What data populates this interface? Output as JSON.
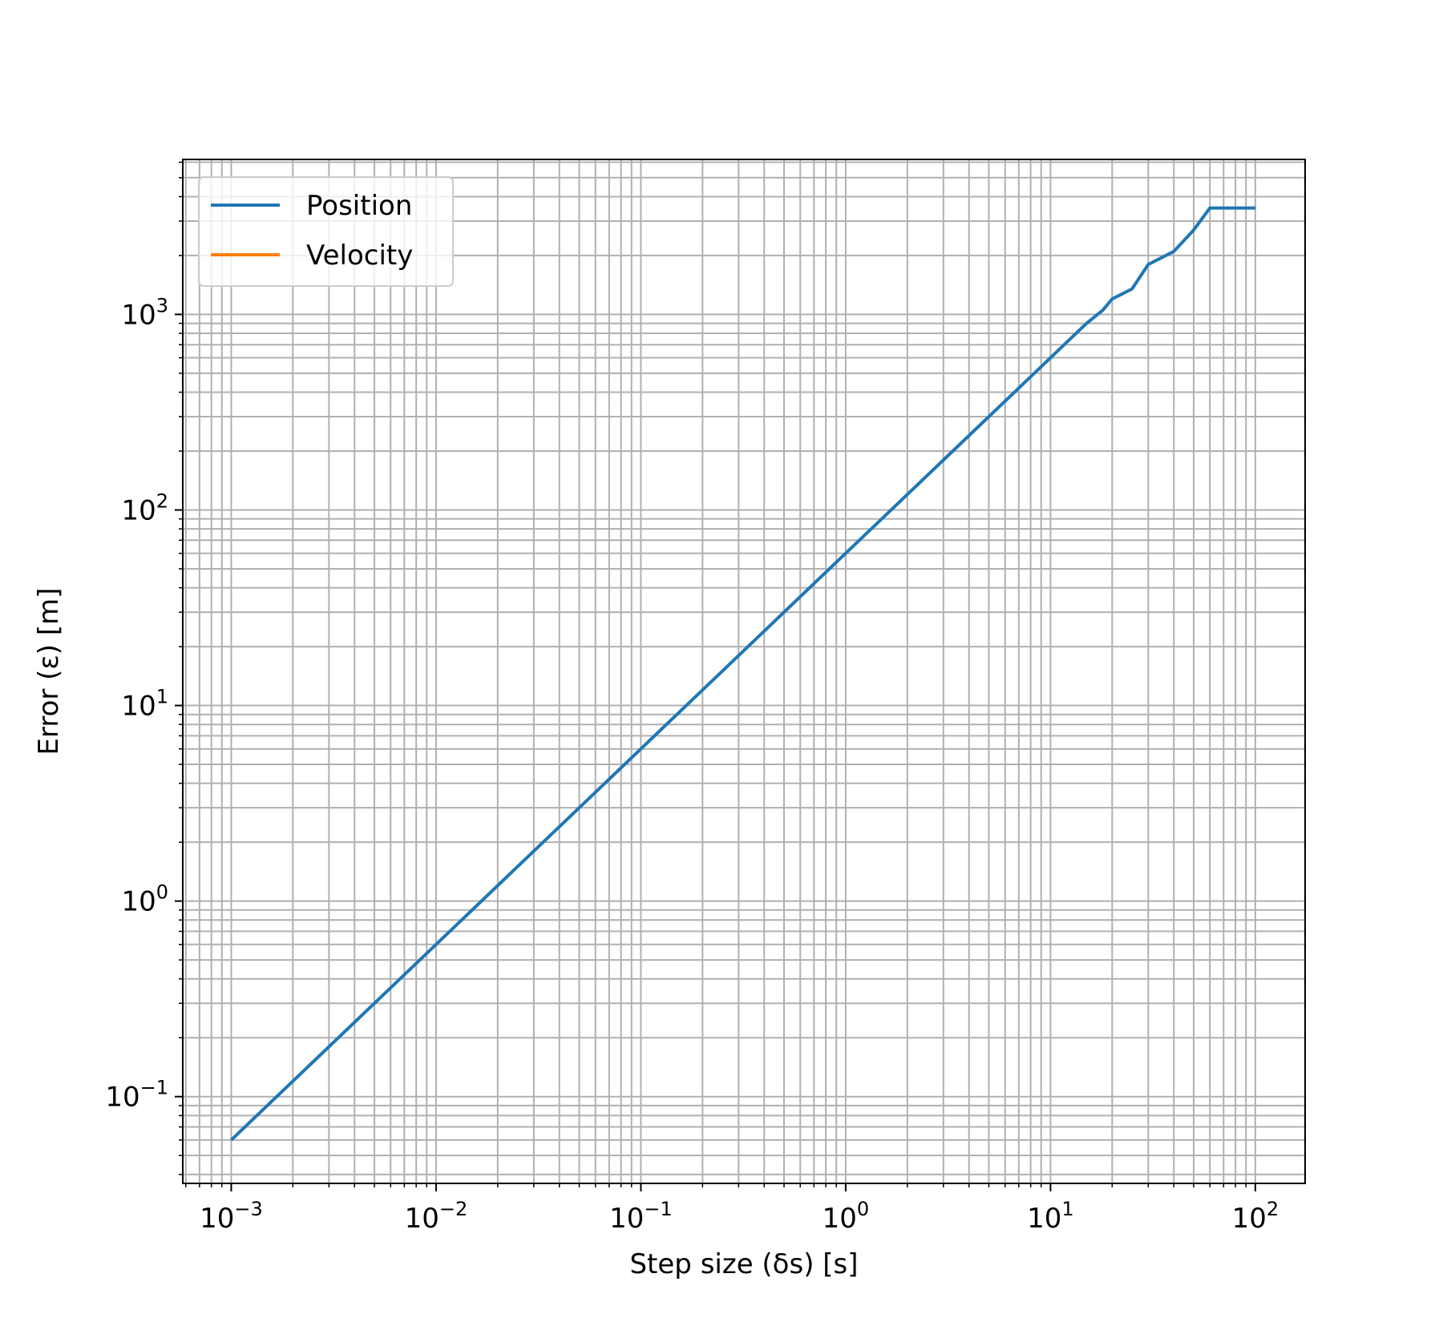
{
  "chart_data": {
    "type": "line",
    "title": "",
    "xlabel": "Step size (δs) [s]",
    "ylabel": "Error (ε) [m]",
    "xscale": "log",
    "yscale": "log",
    "xlim": [
      0.00058,
      175
    ],
    "ylim": [
      0.036,
      6200
    ],
    "grid": "major and minor",
    "legend_position": "top-left",
    "x_ticks": [
      {
        "value": 0.001,
        "base": "10",
        "exp": "−3"
      },
      {
        "value": 0.01,
        "base": "10",
        "exp": "−2"
      },
      {
        "value": 0.1,
        "base": "10",
        "exp": "−1"
      },
      {
        "value": 1,
        "base": "10",
        "exp": "0"
      },
      {
        "value": 10,
        "base": "10",
        "exp": "1"
      },
      {
        "value": 100,
        "base": "10",
        "exp": "2"
      }
    ],
    "y_ticks": [
      {
        "value": 0.1,
        "base": "10",
        "exp": "−1"
      },
      {
        "value": 1,
        "base": "10",
        "exp": "0"
      },
      {
        "value": 10,
        "base": "10",
        "exp": "1"
      },
      {
        "value": 100,
        "base": "10",
        "exp": "2"
      },
      {
        "value": 1000,
        "base": "10",
        "exp": "3"
      }
    ],
    "series": [
      {
        "name": "Position",
        "color": "#1f77b4",
        "x": [
          0.001,
          0.01,
          0.1,
          1,
          5,
          10,
          12,
          15,
          18,
          20,
          25,
          30,
          40,
          50,
          60,
          100
        ],
        "y": [
          0.06,
          0.6,
          6,
          60,
          300,
          600,
          720,
          900,
          1050,
          1200,
          1350,
          1800,
          2100,
          2700,
          3500,
          3500
        ]
      },
      {
        "name": "Velocity",
        "color": "#ff7f0e",
        "x": [],
        "y": []
      }
    ]
  }
}
